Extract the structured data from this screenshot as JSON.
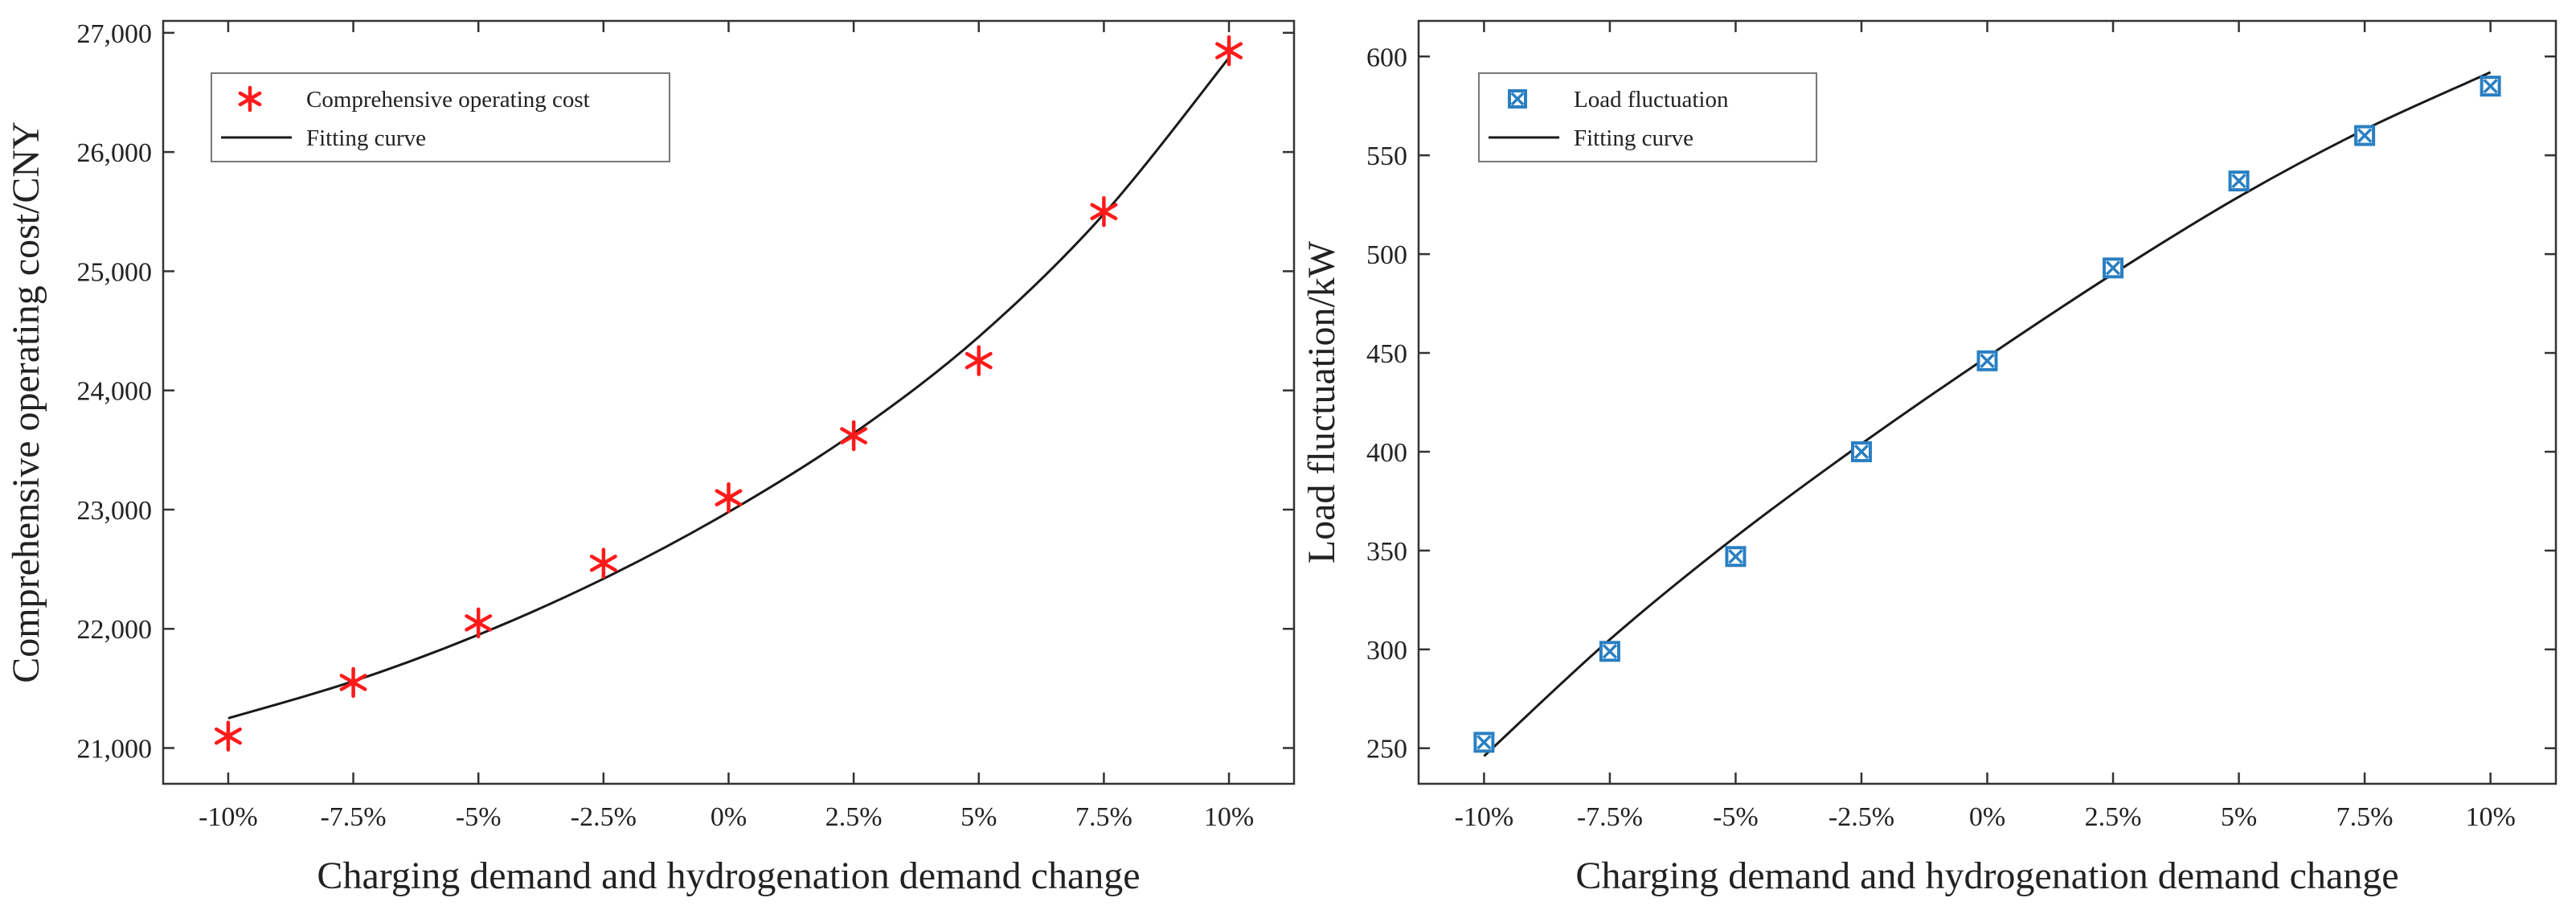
{
  "chart_data": [
    {
      "type": "scatter",
      "title": "",
      "xlabel": "Charging demand and hydrogenation demand change",
      "ylabel": "Comprehensive operating cost/CNY",
      "categories": [
        "-10%",
        "-7.5%",
        "-5%",
        "-2.5%",
        "0%",
        "2.5%",
        "5%",
        "7.5%",
        "10%"
      ],
      "x": [
        -10,
        -7.5,
        -5,
        -2.5,
        0,
        2.5,
        5,
        7.5,
        10
      ],
      "xlim": [
        -11.3,
        11.3
      ],
      "ylim": [
        20700,
        27100
      ],
      "yticks": [
        21000,
        22000,
        23000,
        24000,
        25000,
        26000,
        27000
      ],
      "ytick_labels": [
        "21,000",
        "22,000",
        "23,000",
        "24,000",
        "25,000",
        "26,000",
        "27,000"
      ],
      "series": [
        {
          "name": "Comprehensive operating cost",
          "kind": "markers",
          "marker": "asterisk",
          "color": "#ff1a1a",
          "values": [
            21100,
            21550,
            22050,
            22550,
            23100,
            23620,
            24250,
            25500,
            26850
          ]
        },
        {
          "name": "Fitting curve",
          "kind": "line",
          "color": "#1a1a1a",
          "values": [
            21250,
            21560,
            21950,
            22420,
            22980,
            23640,
            24450,
            25480,
            26790
          ]
        }
      ],
      "legend": "top-left"
    },
    {
      "type": "scatter",
      "title": "",
      "xlabel": "Charging demand and hydrogenation demand change",
      "ylabel": "Load fluctuation/kW",
      "categories": [
        "-10%",
        "-7.5%",
        "-5%",
        "-2.5%",
        "0%",
        "2.5%",
        "5%",
        "7.5%",
        "10%"
      ],
      "x": [
        -10,
        -7.5,
        -5,
        -2.5,
        0,
        2.5,
        5,
        7.5,
        10
      ],
      "xlim": [
        -11.3,
        11.3
      ],
      "ylim": [
        232,
        618
      ],
      "yticks": [
        250,
        300,
        350,
        400,
        450,
        500,
        550,
        600
      ],
      "ytick_labels": [
        "250",
        "300",
        "350",
        "400",
        "450",
        "500",
        "550",
        "600"
      ],
      "series": [
        {
          "name": "Load fluctuation",
          "kind": "markers",
          "marker": "boxed-x",
          "color": "#2a7fc2",
          "values": [
            253,
            299,
            347,
            400,
            446,
            493,
            537,
            560,
            585
          ]
        },
        {
          "name": "Fitting curve",
          "kind": "line",
          "color": "#1a1a1a",
          "values": [
            246,
            305,
            357,
            404,
            448,
            490,
            529,
            563,
            592
          ]
        }
      ],
      "legend": "top-left"
    }
  ]
}
